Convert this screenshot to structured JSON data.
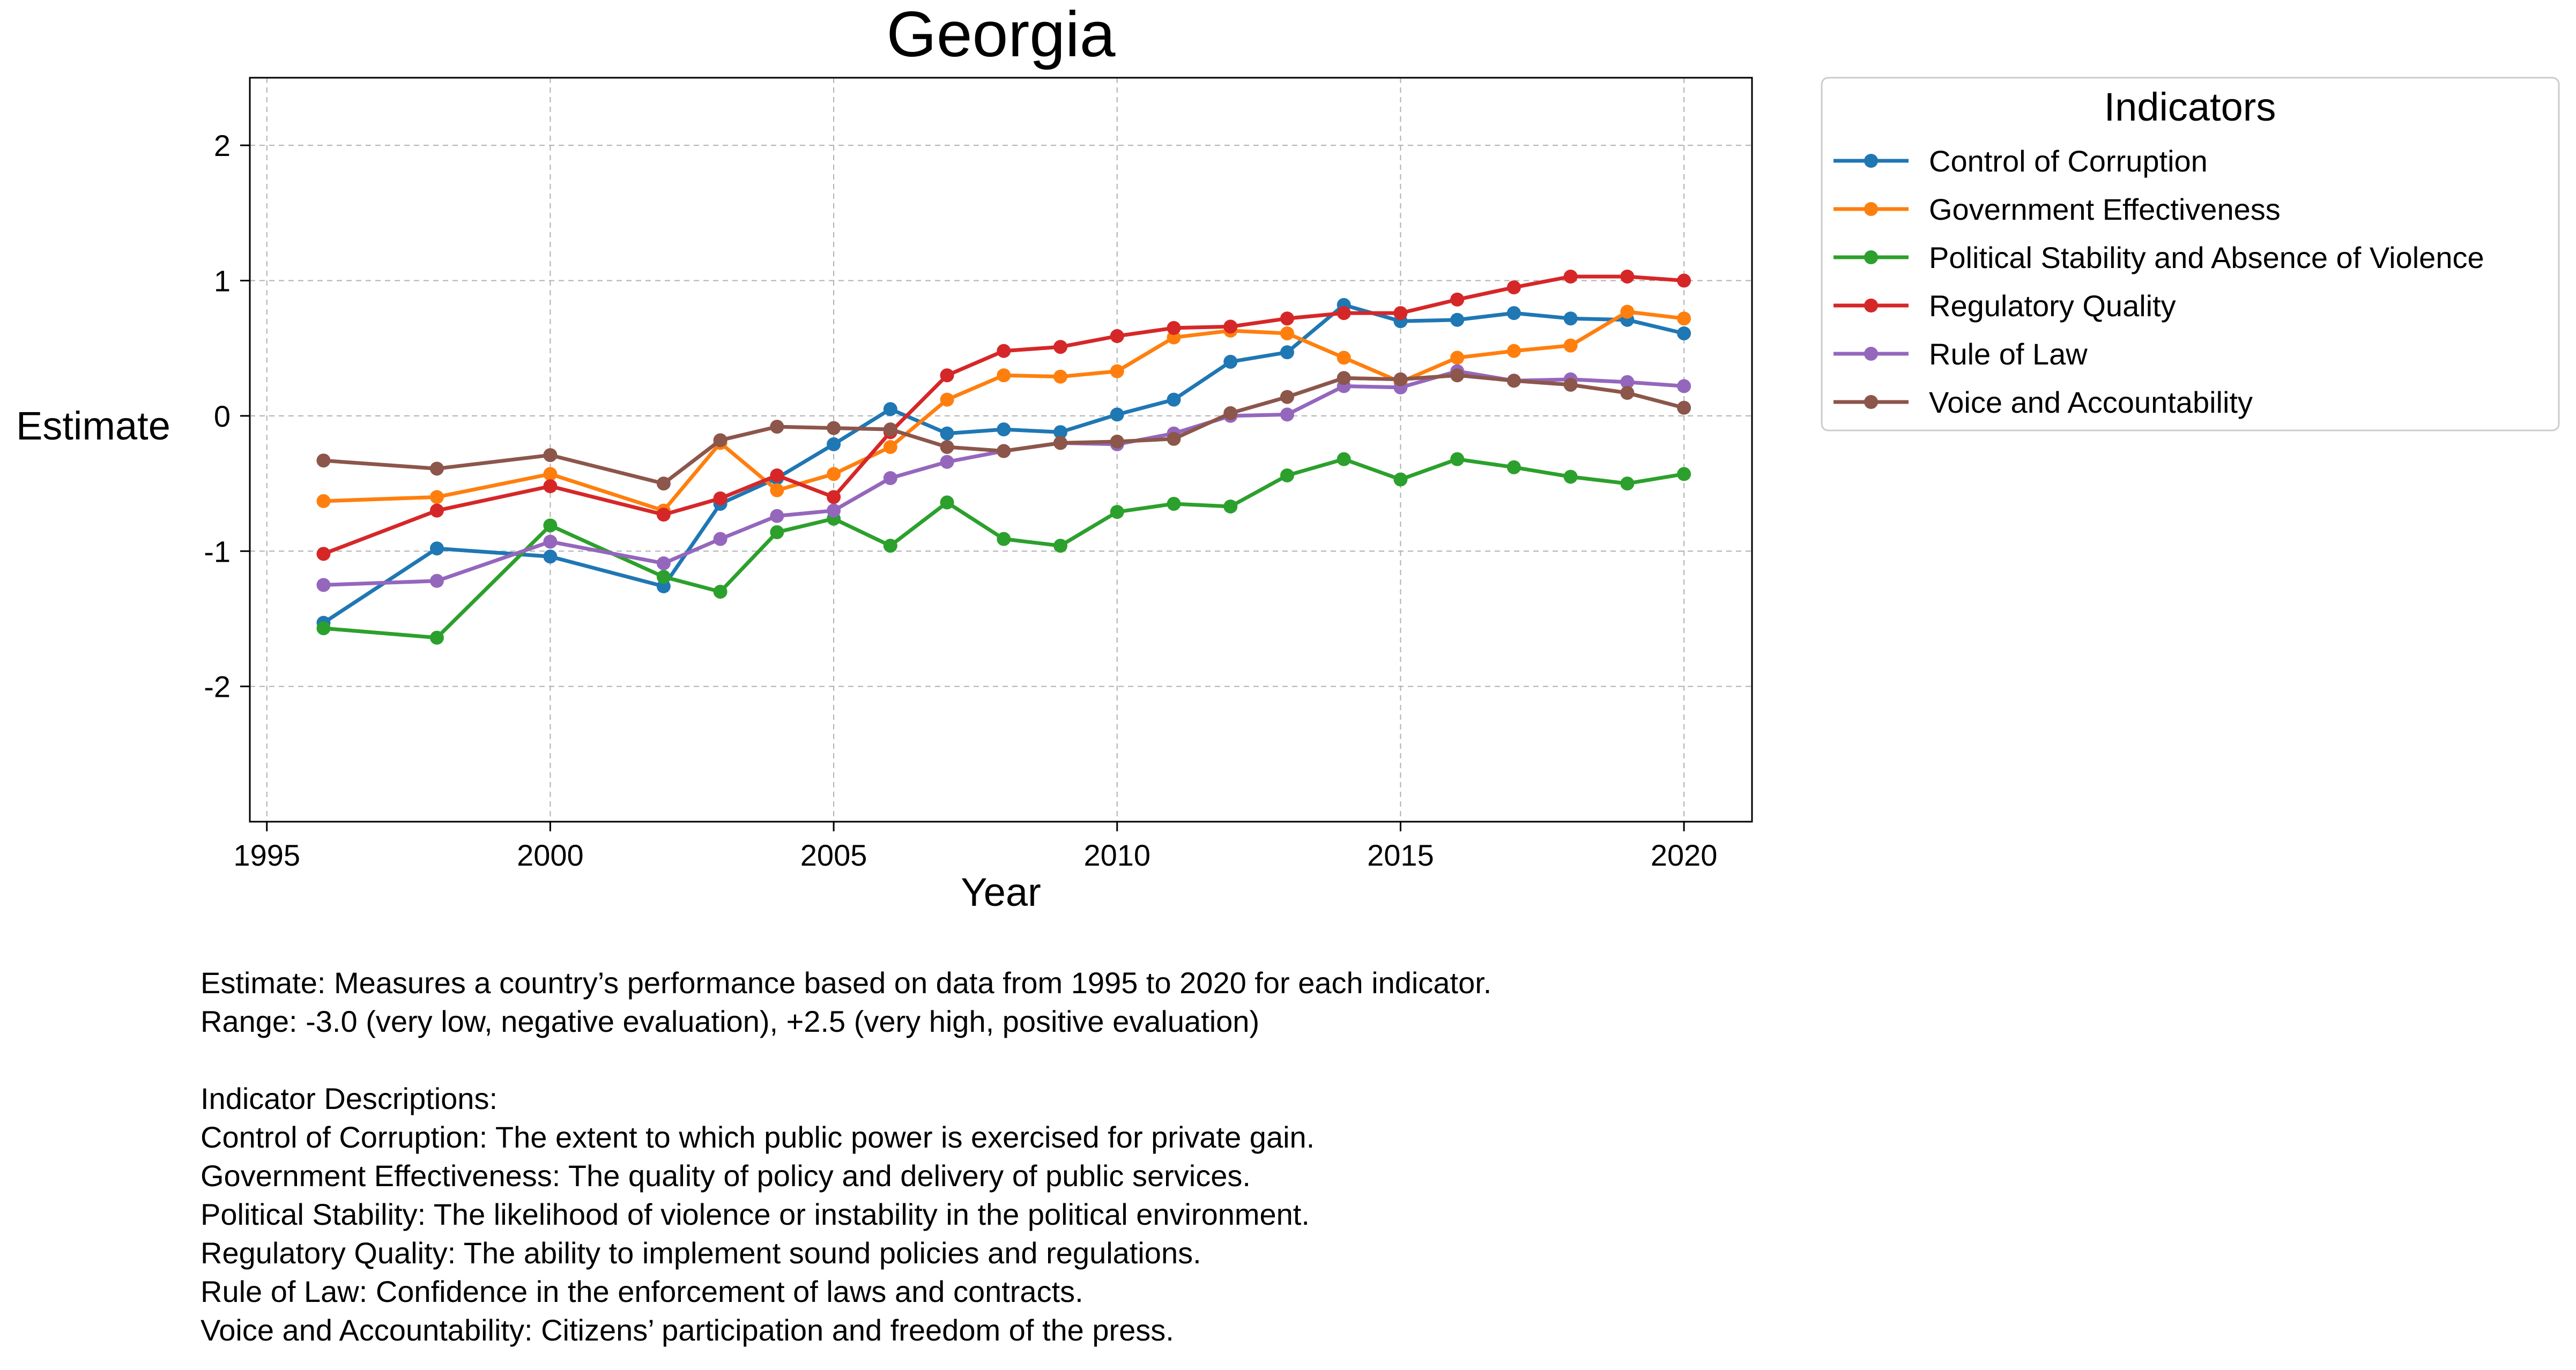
{
  "chart_data": {
    "type": "line",
    "title": "Georgia",
    "xlabel": "Year",
    "ylabel": "Estimate",
    "xlim": [
      1994.7,
      2021.2
    ],
    "ylim": [
      -3.0,
      2.5
    ],
    "xticks": [
      "1995",
      "2000",
      "2005",
      "2010",
      "2015",
      "2020"
    ],
    "yticks": [
      "-2",
      "-1",
      "0",
      "1",
      "2"
    ],
    "grid": true,
    "marker": "circle",
    "legend": {
      "title": "Indicators",
      "placement": "outside-top-right"
    },
    "x": [
      1996,
      1998,
      2000,
      2002,
      2003,
      2004,
      2005,
      2006,
      2007,
      2008,
      2009,
      2010,
      2011,
      2012,
      2013,
      2014,
      2015,
      2016,
      2017,
      2018,
      2019,
      2020
    ],
    "series": [
      {
        "name": "Control of Corruption",
        "color": "#1f77b4",
        "values": [
          -1.53,
          -0.98,
          -1.04,
          -1.26,
          -0.65,
          -0.46,
          -0.21,
          0.05,
          -0.13,
          -0.1,
          -0.12,
          0.01,
          0.12,
          0.4,
          0.47,
          0.82,
          0.7,
          0.71,
          0.76,
          0.72,
          0.71,
          0.61
        ]
      },
      {
        "name": "Government Effectiveness",
        "color": "#ff7f0e",
        "values": [
          -0.63,
          -0.6,
          -0.43,
          -0.7,
          -0.2,
          -0.55,
          -0.43,
          -0.23,
          0.12,
          0.3,
          0.29,
          0.33,
          0.58,
          0.63,
          0.61,
          0.43,
          0.25,
          0.43,
          0.48,
          0.52,
          0.77,
          0.72
        ]
      },
      {
        "name": "Political Stability and Absence of Violence",
        "color": "#2ca02c",
        "values": [
          -1.57,
          -1.64,
          -0.81,
          -1.19,
          -1.3,
          -0.86,
          -0.76,
          -0.96,
          -0.64,
          -0.91,
          -0.96,
          -0.71,
          -0.65,
          -0.67,
          -0.44,
          -0.32,
          -0.47,
          -0.32,
          -0.38,
          -0.45,
          -0.5,
          -0.43
        ]
      },
      {
        "name": "Regulatory Quality",
        "color": "#d62728",
        "values": [
          -1.02,
          -0.7,
          -0.52,
          -0.73,
          -0.61,
          -0.44,
          -0.6,
          -0.12,
          0.3,
          0.48,
          0.51,
          0.59,
          0.65,
          0.66,
          0.72,
          0.76,
          0.76,
          0.86,
          0.95,
          1.03,
          1.03,
          1.0
        ]
      },
      {
        "name": "Rule of Law",
        "color": "#9467bd",
        "values": [
          -1.25,
          -1.22,
          -0.93,
          -1.09,
          -0.91,
          -0.74,
          -0.7,
          -0.46,
          -0.34,
          -0.26,
          -0.2,
          -0.21,
          -0.13,
          0.0,
          0.01,
          0.22,
          0.21,
          0.33,
          0.26,
          0.27,
          0.25,
          0.22
        ]
      },
      {
        "name": "Voice and Accountability",
        "color": "#8c564b",
        "values": [
          -0.33,
          -0.39,
          -0.29,
          -0.5,
          -0.18,
          -0.08,
          -0.09,
          -0.1,
          -0.23,
          -0.26,
          -0.2,
          -0.19,
          -0.17,
          0.02,
          0.14,
          0.28,
          0.27,
          0.3,
          0.26,
          0.23,
          0.17,
          0.06
        ]
      }
    ]
  },
  "footnote": {
    "lines": [
      "Estimate: Measures a country’s performance based on data from 1995 to 2020 for each indicator.",
      "Range: -3.0 (very low, negative evaluation), +2.5 (very high, positive evaluation)",
      "",
      "Indicator Descriptions:",
      "Control of Corruption: The extent to which public power is exercised for private gain.",
      "Government Effectiveness: The quality of policy and delivery of public services.",
      "Political Stability: The likelihood of violence or instability in the political environment.",
      "Regulatory Quality: The ability to implement sound policies and regulations.",
      "Rule of Law: Confidence in the enforcement of laws and contracts.",
      "Voice and Accountability: Citizens’ participation and freedom of the press."
    ]
  }
}
